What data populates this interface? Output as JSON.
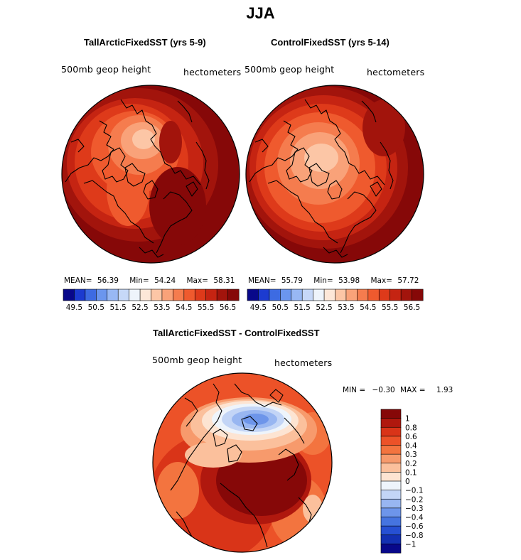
{
  "title": "JJA",
  "panels": [
    {
      "title": "TallArcticFixedSST (yrs 5-9)",
      "variable": "500mb geop height",
      "units": "hectometers",
      "stats": {
        "mean_label": "MEAN=",
        "mean": "56.39",
        "min_label": "Min=",
        "min": "54.24",
        "max_label": "Max=",
        "max": "58.31"
      }
    },
    {
      "title": "ControlFixedSST (yrs 5-14)",
      "variable": "500mb geop height",
      "units": "hectometers",
      "stats": {
        "mean_label": "MEAN=",
        "mean": "55.79",
        "min_label": "Min=",
        "min": "53.98",
        "max_label": "Max=",
        "max": "57.72"
      }
    }
  ],
  "colorbar_top": {
    "labels": [
      "49.5",
      "50.5",
      "51.5",
      "52.5",
      "53.5",
      "54.5",
      "55.5",
      "56.5"
    ],
    "colors": [
      "#08088a",
      "#1c3bd0",
      "#3d6be2",
      "#6b96ee",
      "#98b8f4",
      "#c6d8f8",
      "#eef4fb",
      "#fde7d8",
      "#fcc6a6",
      "#f9a279",
      "#f57c4e",
      "#ef5a2e",
      "#de3a1a",
      "#c52412",
      "#a2140c",
      "#860808"
    ]
  },
  "difference": {
    "title": "TallArcticFixedSST - ControlFixedSST",
    "variable": "500mb geop height",
    "units": "hectometers",
    "stats": {
      "min_label": "MIN =",
      "min": "−0.30",
      "max_label": "MAX =",
      "max": "1.93"
    }
  },
  "colorbar_diff": {
    "labels": [
      "1",
      "0.8",
      "0.6",
      "0.4",
      "0.3",
      "0.2",
      "0.1",
      "0",
      "−0.1",
      "−0.2",
      "−0.3",
      "−0.4",
      "−0.6",
      "−0.8",
      "−1"
    ],
    "colors": [
      "#860808",
      "#b0180e",
      "#d93418",
      "#ec5228",
      "#f3743f",
      "#f79a6c",
      "#fbc09c",
      "#fde4d2",
      "#eef4fb",
      "#c3d5f6",
      "#98b6f1",
      "#6d95ea",
      "#4574e0",
      "#2650d3",
      "#1330b2",
      "#08088a"
    ]
  },
  "colors": {
    "ocean_dark": "#860808",
    "coast": "#000000"
  }
}
